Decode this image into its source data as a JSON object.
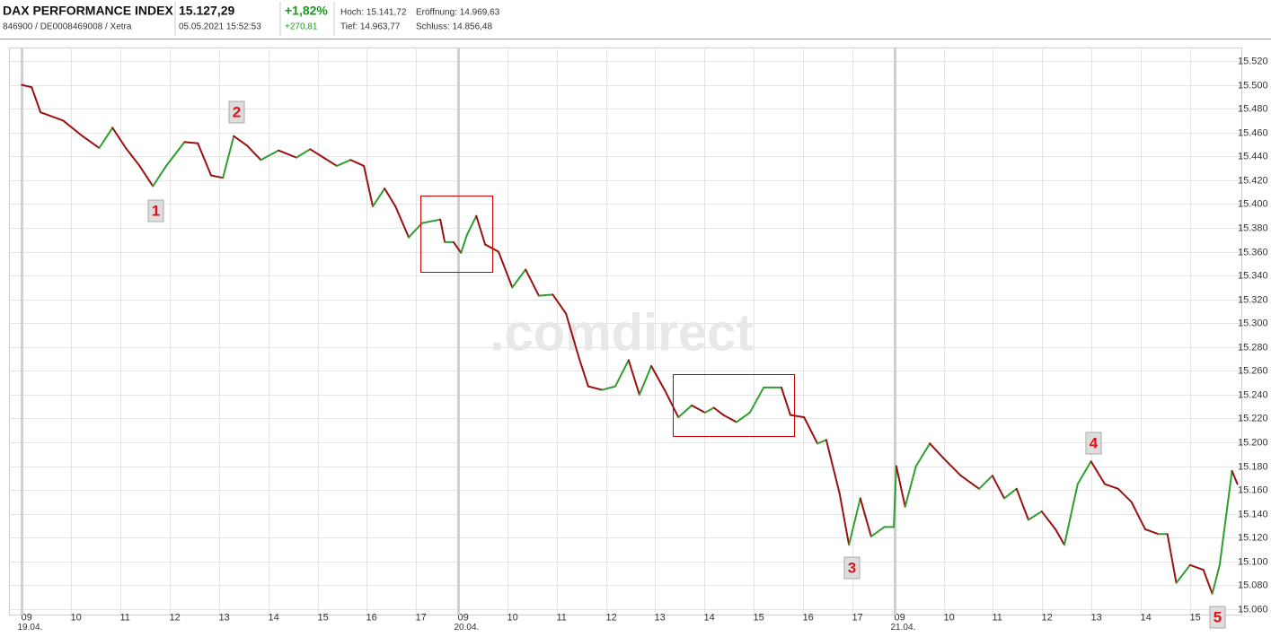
{
  "header": {
    "title": "DAX PERFORMANCE INDEX",
    "price": "15.127,29",
    "change_pct": "+1,82%",
    "ids": "846900 / DE0008469008 / Xetra",
    "timestamp": "05.05.2021 15:52:53",
    "change_abs": "+270,81",
    "high": "Hoch: 15.141,72",
    "open": "Eröffnung: 14.969,63",
    "low": "Tief: 14.963,77",
    "close": "Schluss: 14.856,48"
  },
  "chart_data": {
    "type": "line",
    "watermark": ".comdirect",
    "annotations": [
      "1",
      "2",
      "3",
      "4",
      "5"
    ],
    "x": [
      0,
      0.2,
      0.38,
      0.84,
      1.2,
      1.57,
      1.84,
      2.11,
      2.39,
      2.66,
      2.93,
      3.3,
      3.57,
      3.84,
      4.08,
      4.3,
      4.57,
      4.85,
      5.21,
      5.57,
      5.85,
      6.12,
      6.39,
      6.67,
      6.94,
      7.12,
      7.36,
      7.58,
      7.85,
      8.12,
      8.49,
      8.58,
      8.76,
      8.91,
      9.03,
      9.22,
      9.4,
      9.67,
      9.95,
      10.22,
      10.49,
      10.77,
      11.04,
      11.31,
      11.49,
      11.77,
      12.04,
      12.31,
      12.53,
      12.77,
      13.04,
      13.32,
      13.59,
      13.86,
      14.04,
      14.23,
      14.5,
      14.77,
      15.05,
      15.41,
      15.59,
      15.87,
      16.14,
      16.32,
      16.59,
      16.78,
      17.01,
      17.23,
      17.5,
      17.69,
      17.74,
      17.92,
      18.14,
      18.42,
      18.69,
      19.05,
      19.42,
      19.69,
      19.93,
      20.18,
      20.42,
      20.69,
      20.97,
      21.15,
      21.42,
      21.69,
      21.97,
      22.24,
      22.51,
      22.79,
      23.06,
      23.24,
      23.42,
      23.7,
      23.97,
      24.15,
      24.3,
      24.43,
      24.55,
      24.66
    ],
    "series": [
      {
        "name": "DAX",
        "values": [
          15500,
          15498,
          15477,
          15470,
          15458,
          15447,
          15464,
          15447,
          15432,
          15415,
          15432,
          15452,
          15451,
          15424,
          15422,
          15457,
          15449,
          15437,
          15445,
          15439,
          15446,
          15439,
          15432,
          15437,
          15432,
          15398,
          15413,
          15398,
          15372,
          15384,
          15387,
          15368,
          15368,
          15359,
          15374,
          15390,
          15366,
          15360,
          15330,
          15345,
          15323,
          15324,
          15308,
          15270,
          15247,
          15244,
          15247,
          15269,
          15240,
          15264,
          15244,
          15221,
          15231,
          15225,
          15229,
          15223,
          15217,
          15225,
          15246,
          15246,
          15223,
          15221,
          15199,
          15202,
          15157,
          15114,
          15153,
          15121,
          15129,
          15129,
          15180,
          15146,
          15180,
          15199,
          15187,
          15172,
          15161,
          15172,
          15153,
          15161,
          15135,
          15142,
          15127,
          15114,
          15165,
          15184,
          15165,
          15161,
          15150,
          15127,
          15123,
          15123,
          15082,
          15097,
          15093,
          15073,
          15097,
          15138,
          15176,
          15165
        ]
      }
    ],
    "up_color": "#2e9e2e",
    "down_color": "#9b1111",
    "xlim": [
      -0.26,
      24.74
    ],
    "xticks": [
      {
        "value": 0,
        "label": "09"
      },
      {
        "value": 1,
        "label": "10"
      },
      {
        "value": 2,
        "label": "11"
      },
      {
        "value": 3,
        "label": "12"
      },
      {
        "value": 4,
        "label": "13"
      },
      {
        "value": 5,
        "label": "14"
      },
      {
        "value": 6,
        "label": "15"
      },
      {
        "value": 7,
        "label": "16"
      },
      {
        "value": 8,
        "label": "17"
      },
      {
        "value": 8.85,
        "label": "09"
      },
      {
        "value": 9.85,
        "label": "10"
      },
      {
        "value": 10.85,
        "label": "11"
      },
      {
        "value": 11.85,
        "label": "12"
      },
      {
        "value": 12.85,
        "label": "13"
      },
      {
        "value": 13.85,
        "label": "14"
      },
      {
        "value": 14.85,
        "label": "15"
      },
      {
        "value": 15.85,
        "label": "16"
      },
      {
        "value": 16.85,
        "label": "17"
      },
      {
        "value": 17.7,
        "label": "09"
      },
      {
        "value": 18.7,
        "label": "10"
      },
      {
        "value": 19.7,
        "label": "11"
      },
      {
        "value": 20.7,
        "label": "12"
      },
      {
        "value": 21.7,
        "label": "13"
      },
      {
        "value": 22.7,
        "label": "14"
      },
      {
        "value": 23.7,
        "label": "15"
      }
    ],
    "day_ticks": [
      {
        "value": 0,
        "label": "19.04."
      },
      {
        "value": 8.85,
        "label": "20.04."
      },
      {
        "value": 17.7,
        "label": "21.04."
      }
    ],
    "ylim": [
      15055,
      15525
    ],
    "yticks": [
      {
        "value": 15060,
        "label": "15.060"
      },
      {
        "value": 15080,
        "label": "15.080"
      },
      {
        "value": 15100,
        "label": "15.100"
      },
      {
        "value": 15120,
        "label": "15.120"
      },
      {
        "value": 15140,
        "label": "15.140"
      },
      {
        "value": 15160,
        "label": "15.160"
      },
      {
        "value": 15180,
        "label": "15.180"
      },
      {
        "value": 15200,
        "label": "15.200"
      },
      {
        "value": 15220,
        "label": "15.220"
      },
      {
        "value": 15240,
        "label": "15.240"
      },
      {
        "value": 15260,
        "label": "15.260"
      },
      {
        "value": 15280,
        "label": "15.280"
      },
      {
        "value": 15300,
        "label": "15.300"
      },
      {
        "value": 15320,
        "label": "15.320"
      },
      {
        "value": 15340,
        "label": "15.340"
      },
      {
        "value": 15360,
        "label": "15.360"
      },
      {
        "value": 15380,
        "label": "15.380"
      },
      {
        "value": 15400,
        "label": "15.400"
      },
      {
        "value": 15420,
        "label": "15.420"
      },
      {
        "value": 15440,
        "label": "15.440"
      },
      {
        "value": 15460,
        "label": "15.460"
      },
      {
        "value": 15480,
        "label": "15.480"
      },
      {
        "value": 15500,
        "label": "15.500"
      },
      {
        "value": 15520,
        "label": "15.520"
      }
    ],
    "grid": true
  }
}
